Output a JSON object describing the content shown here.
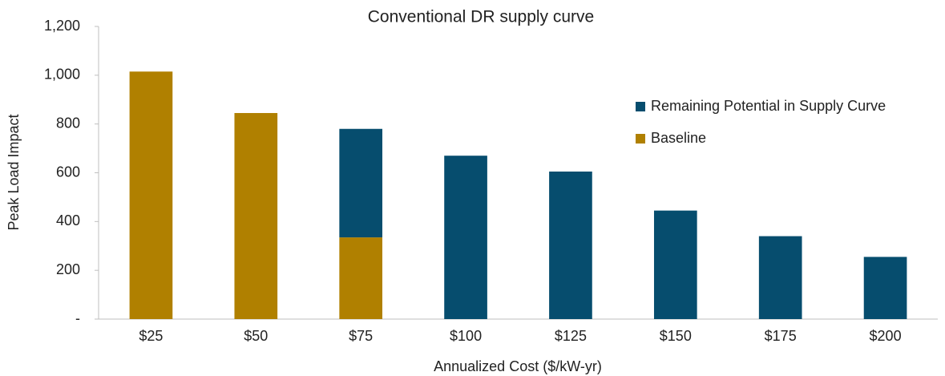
{
  "chart_data": {
    "type": "stacked_bar",
    "title": "Conventional DR supply curve",
    "x_label": "Annualized Cost ($/kW-yr)",
    "y_label": "Peak Load Impact",
    "categories": [
      "$25",
      "$50",
      "$75",
      "$100",
      "$125",
      "$150",
      "$175",
      "$200"
    ],
    "series": [
      {
        "name": "Baseline",
        "color": "#b08000",
        "values": [
          1015,
          845,
          335,
          null,
          null,
          null,
          null,
          null
        ]
      },
      {
        "name": "Remaining Potential in Supply Curve",
        "color": "#064d6e",
        "values": [
          null,
          null,
          445,
          670,
          605,
          445,
          340,
          255
        ]
      }
    ],
    "legend_order": [
      1,
      0
    ],
    "ylim": [
      0,
      1200
    ],
    "yticks": [
      {
        "value": 0,
        "label": "-"
      },
      200,
      400,
      600,
      800,
      {
        "value": 1000,
        "label": "1,000"
      },
      {
        "value": 1200,
        "label": "1,200"
      }
    ],
    "grid": false,
    "legend": "right"
  }
}
